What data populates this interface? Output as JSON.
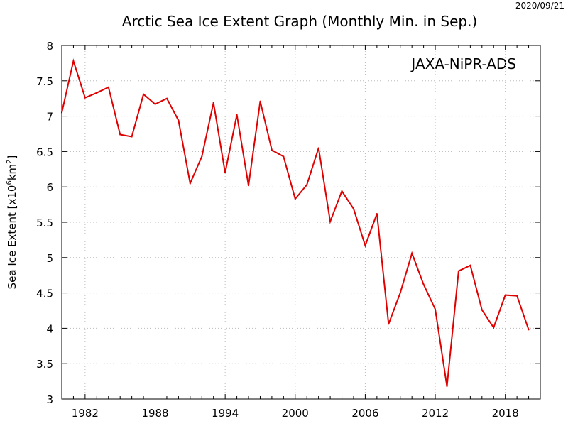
{
  "chart_data": {
    "type": "line",
    "title": "Arctic Sea Ice Extent Graph (Monthly Min. in Sep.)",
    "date_stamp": "2020/09/21",
    "source_label": "JAXA-NiPR-ADS",
    "ylabel_prefix": "Sea Ice Extent [x10",
    "ylabel_exp1": "6",
    "ylabel_mid": "km",
    "ylabel_exp2": "2",
    "ylabel_suffix": "]",
    "xlabel": "",
    "xlim": [
      1980,
      2021
    ],
    "ylim": [
      3,
      8
    ],
    "x_ticks": [
      1982,
      1988,
      1994,
      2000,
      2006,
      2012,
      2018
    ],
    "y_ticks": [
      3,
      3.5,
      4,
      4.5,
      5,
      5.5,
      6,
      6.5,
      7,
      7.5,
      8
    ],
    "y_tick_labels": [
      "3",
      "3.5",
      "4",
      "4.5",
      "5",
      "5.5",
      "6",
      "6.5",
      "7",
      "7.5",
      "8"
    ],
    "grid": true,
    "line_color": "#e00000",
    "series": [
      {
        "x": [
          1980,
          1981,
          1982,
          1983,
          1984,
          1985,
          1986,
          1987,
          1988,
          1989,
          1990,
          1991,
          1992,
          1993,
          1994,
          1995,
          1996,
          1997,
          1998,
          1999,
          2000,
          2001,
          2002,
          2003,
          2004,
          2005,
          2006,
          2007,
          2008,
          2009,
          2010,
          2011,
          2012,
          2013,
          2014,
          2015,
          2016,
          2017,
          2018,
          2019,
          2020
        ],
        "values": [
          7.05,
          7.78,
          7.26,
          7.33,
          7.41,
          6.74,
          6.71,
          7.31,
          7.17,
          7.25,
          6.94,
          6.05,
          6.43,
          7.19,
          6.2,
          7.02,
          6.02,
          7.21,
          6.52,
          6.43,
          5.83,
          6.03,
          6.55,
          5.51,
          5.94,
          5.69,
          5.17,
          5.62,
          4.06,
          4.5,
          5.06,
          4.62,
          4.27,
          3.18,
          4.81,
          4.89,
          4.26,
          4.01,
          4.47,
          4.46,
          3.98
        ]
      }
    ]
  }
}
